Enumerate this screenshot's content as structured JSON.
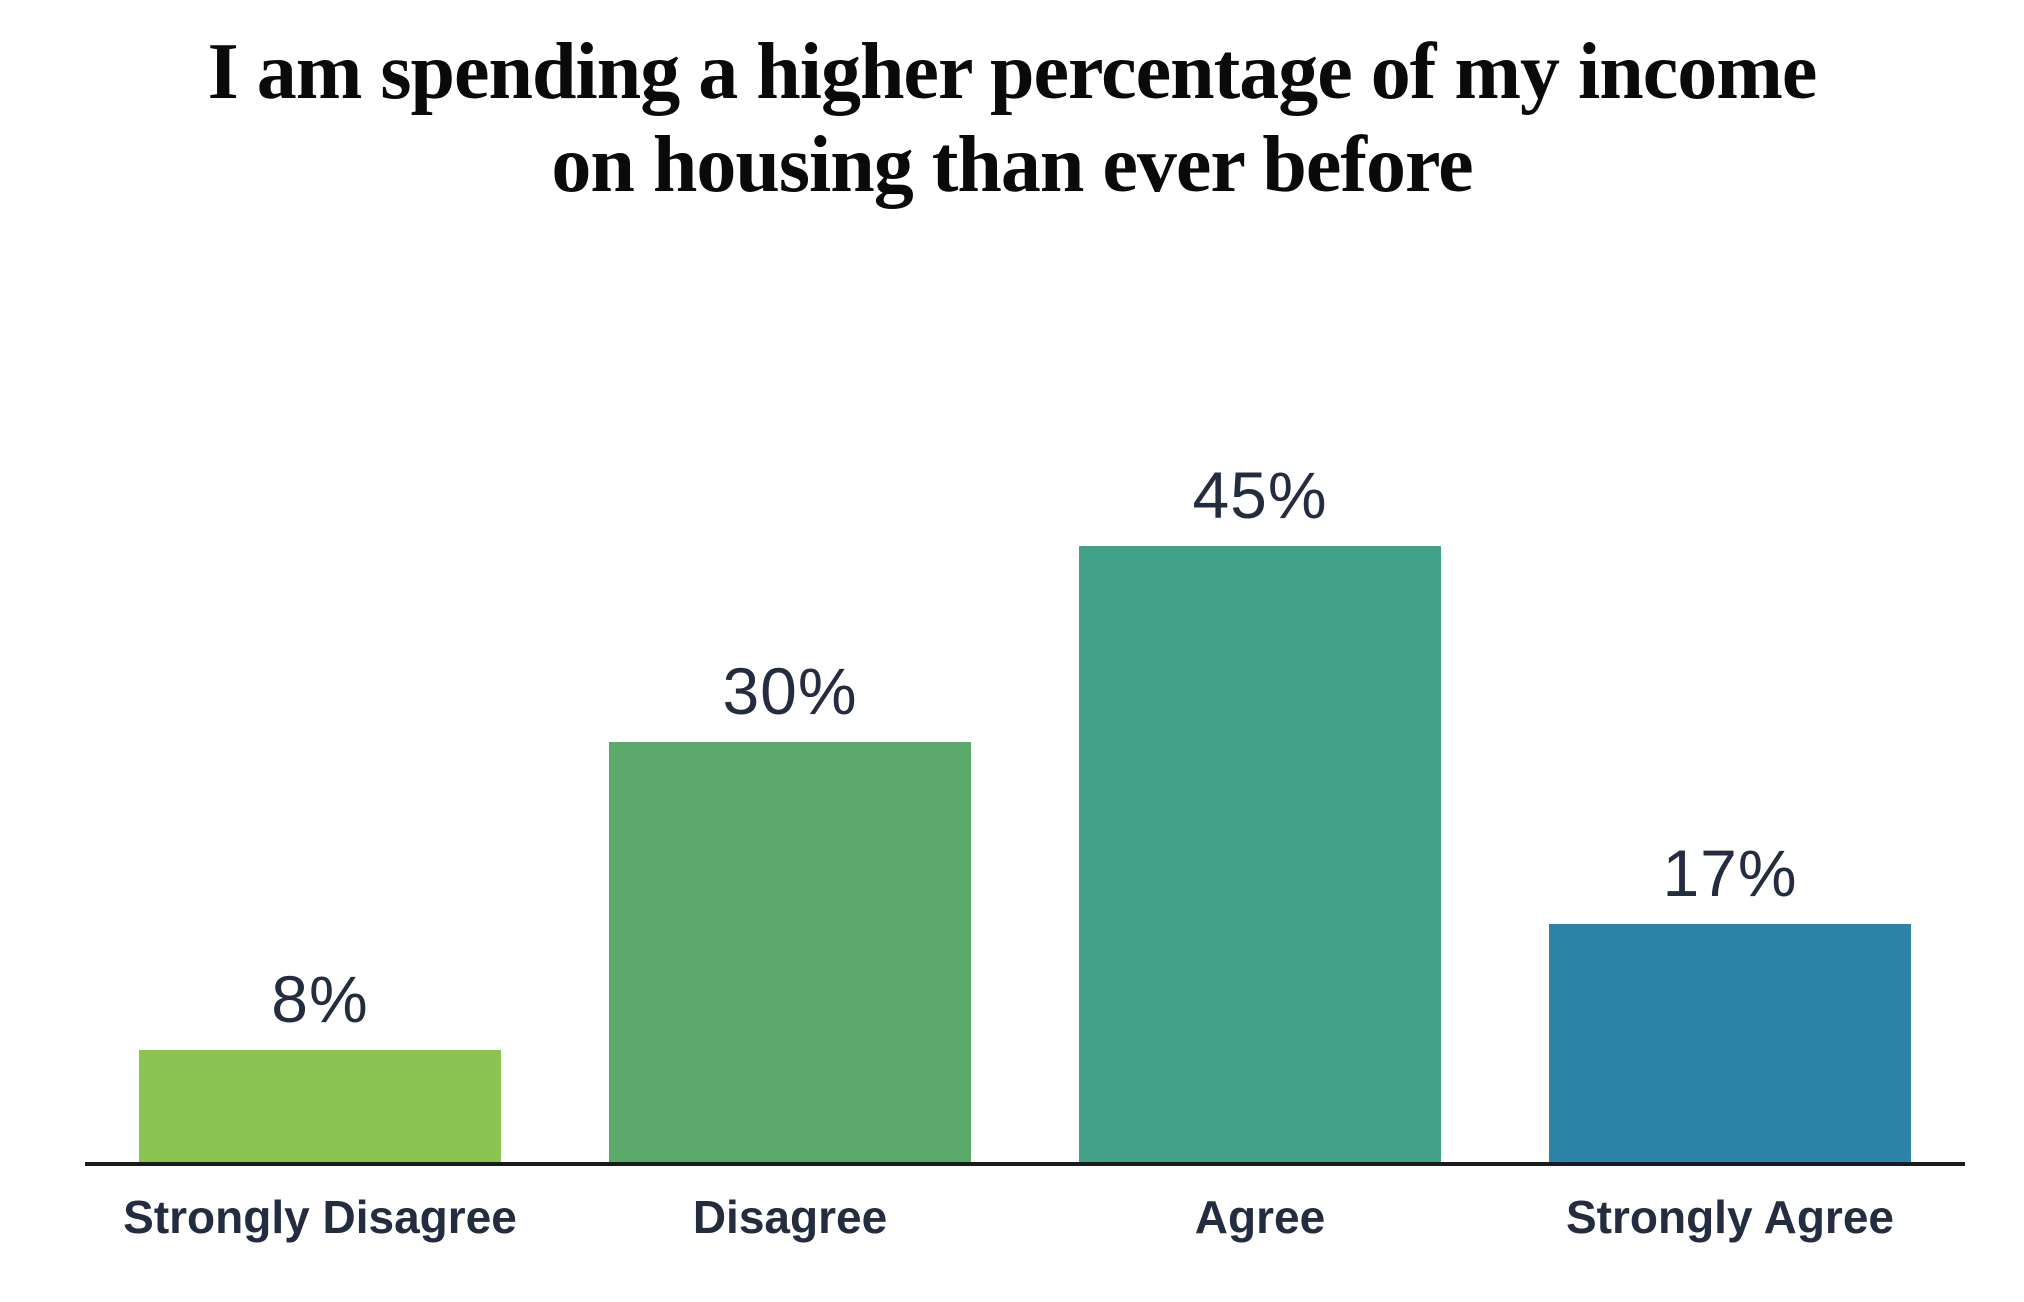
{
  "header": {
    "title_line1": "I am spending a higher percentage of my income",
    "title_line2": "on housing than ever before"
  },
  "chart_data": {
    "type": "bar",
    "title": "I am spending a higher percentage of my income on housing than ever before",
    "categories": [
      "Strongly Disagree",
      "Disagree",
      "Agree",
      "Strongly Agree"
    ],
    "values": [
      8,
      30,
      45,
      17
    ],
    "value_labels": [
      "8%",
      "30%",
      "45%",
      "17%"
    ],
    "unit": "%",
    "bar_colors": [
      "#8cc451",
      "#5baa6b",
      "#43a188",
      "#2b84a8"
    ],
    "ylim": [
      0,
      50
    ],
    "xlabel": "",
    "ylabel": "",
    "grid": false,
    "legend": "none",
    "value_label_position": "above-bar",
    "axis_line_color": "#1b1b1b",
    "label_color": "#232d3f",
    "title_color": "#0a0a0a",
    "background_color": "#ffffff"
  }
}
